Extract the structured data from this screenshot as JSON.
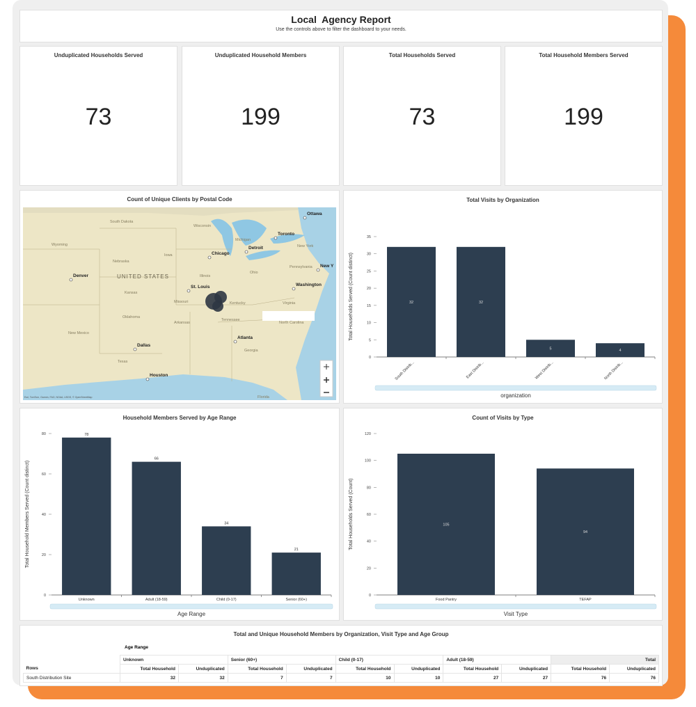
{
  "header": {
    "title": "Local  Agency Report",
    "subtitle": "Use the controls above to filter the dashboard to your needs."
  },
  "kpis": [
    {
      "label": "Unduplicated Households Served",
      "value": 73
    },
    {
      "label": "Unduplicated Household Members",
      "value": 199
    },
    {
      "label": "Total Households Served",
      "value": 73
    },
    {
      "label": "Total Household Members Served",
      "value": 199
    }
  ],
  "map": {
    "title": "Count of Unique Clients by Postal Code",
    "cities": [
      "Ottawa",
      "Toronto",
      "Chicago",
      "Detroit",
      "New Y",
      "Denver",
      "St. Louis",
      "Washington",
      "Atlanta",
      "Dallas",
      "Houston"
    ],
    "places": [
      "South Dakota",
      "Wisconsin",
      "Michigan",
      "Wyoming",
      "Nebraska",
      "Iowa",
      "Illinois",
      "Ohio",
      "Pennsylvania",
      "New York",
      "Kansas",
      "Missouri",
      "Kentucky",
      "Virginia",
      "Oklahoma",
      "Tennessee",
      "North Carolina",
      "New Mexico",
      "Arkansas",
      "Georgia",
      "Texas",
      "Florida",
      "UNITED STATES"
    ],
    "attribution": "Esri, TomTom, Garmin, FAO, NOAA, USGS, © OpenStreetMap"
  },
  "chart_data": [
    {
      "type": "bar",
      "title": "Total Visits by Organization",
      "categories": [
        "South Distrib...",
        "East Distrib...",
        "West Distrib...",
        "North Distrib..."
      ],
      "values": [
        32,
        32,
        5,
        4
      ],
      "color": "#2d3e50",
      "ylim": [
        0,
        35
      ],
      "yticks": [
        0,
        5,
        10,
        15,
        20,
        25,
        30,
        35
      ],
      "ylabel": "Total Households Served (Count distinct)",
      "xlabel": "organization",
      "value_label_position": "center",
      "rotate_labels": true
    },
    {
      "type": "bar",
      "title": "Household Members Served by Age Range",
      "categories": [
        "Unknown",
        "Adult (18-59)",
        "Child (0-17)",
        "Senior (60+)"
      ],
      "values": [
        78,
        66,
        34,
        21
      ],
      "color": "#2d3e50",
      "ylim": [
        0,
        80
      ],
      "yticks": [
        0,
        20,
        40,
        60,
        80
      ],
      "ylabel": "Total Household Members Served (Count distinct)",
      "xlabel": "Age Range",
      "value_label_position": "top",
      "rotate_labels": false
    },
    {
      "type": "bar",
      "title": "Count of Visits by Type",
      "categories": [
        "Food Pantry",
        "TEFAP"
      ],
      "values": [
        105,
        94
      ],
      "color": "#2d3e50",
      "ylim": [
        0,
        120
      ],
      "yticks": [
        0,
        20,
        40,
        60,
        80,
        100,
        120
      ],
      "ylabel": "Total Households Served (Count)",
      "xlabel": "Visit Type",
      "value_label_position": "center",
      "rotate_labels": false
    }
  ],
  "table": {
    "title": "Total and Unique Household Members by Organization, Visit Type and Age Group",
    "group_label": "Age Range",
    "rows_label": "Rows",
    "groups": [
      "Unknown",
      "Senior (60+)",
      "Child (0-17)",
      "Adult (18-59)",
      "Total"
    ],
    "subheaders": [
      "Total Household",
      "Unduplicated",
      "Total Household",
      "Unduplicated",
      "Total Household",
      "Unduplicated",
      "Total Household",
      "Unduplicated",
      "Total Household",
      "Unduplicated"
    ],
    "rows": [
      {
        "name": "South Distribution Site",
        "cells": [
          32,
          32,
          7,
          7,
          10,
          10,
          27,
          27,
          76,
          76
        ]
      }
    ]
  }
}
